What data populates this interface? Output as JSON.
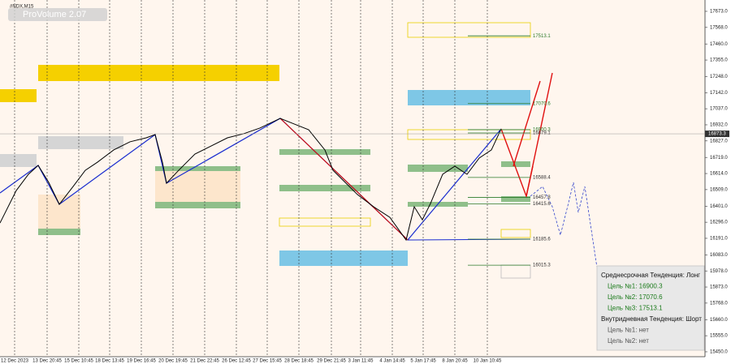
{
  "chart_data": {
    "type": "line",
    "symbol": "#NDX,M15",
    "indicator": "ProVolume 2.07",
    "xlim": [
      0,
      868
    ],
    "ylim": [
      15418,
      17747
    ],
    "xticks": [
      {
        "value": 18,
        "label": "12 Dec 2023"
      },
      {
        "value": 58,
        "label": "13 Dec 20:45"
      },
      {
        "value": 97,
        "label": "15 Dec 10:45"
      },
      {
        "value": 135,
        "label": "18 Dec 13:45"
      },
      {
        "value": 174,
        "label": "19 Dec 16:45"
      },
      {
        "value": 213,
        "label": "20 Dec 19:45"
      },
      {
        "value": 252,
        "label": "21 Dec 22:45"
      },
      {
        "value": 291,
        "label": "26 Dec 12:45"
      },
      {
        "value": 329,
        "label": "27 Dec 15:45"
      },
      {
        "value": 368,
        "label": "28 Dec 18:45"
      },
      {
        "value": 408,
        "label": "29 Dec 21:45"
      },
      {
        "value": 444,
        "label": "3 Jan 11:45"
      },
      {
        "value": 483,
        "label": "4 Jan 14:45"
      },
      {
        "value": 521,
        "label": "5 Jan 17:45"
      },
      {
        "value": 560,
        "label": "8 Jan 20:45"
      },
      {
        "value": 600,
        "label": "10 Jan 10:45"
      }
    ],
    "yticks": [
      {
        "value": 17673,
        "label": "17673.0"
      },
      {
        "value": 17568,
        "label": "17568.0"
      },
      {
        "value": 17460,
        "label": "17460.0"
      },
      {
        "value": 17355,
        "label": "17355.0"
      },
      {
        "value": 17248,
        "label": "17248.0"
      },
      {
        "value": 17142,
        "label": "17142.0"
      },
      {
        "value": 17037,
        "label": "17037.0"
      },
      {
        "value": 16932,
        "label": "16932.0"
      },
      {
        "value": 16827,
        "label": "16827.0"
      },
      {
        "value": 16719,
        "label": "16719.0"
      },
      {
        "value": 16614,
        "label": "16614.0"
      },
      {
        "value": 16509,
        "label": "16509.0"
      },
      {
        "value": 16401,
        "label": "16401.0"
      },
      {
        "value": 16296,
        "label": "16296.0"
      },
      {
        "value": 16191,
        "label": "16191.0"
      },
      {
        "value": 16083,
        "label": "16083.0"
      },
      {
        "value": 15978,
        "label": "15978.0"
      },
      {
        "value": 15873,
        "label": "15873.0"
      },
      {
        "value": 15768,
        "label": "15768.0"
      },
      {
        "value": 15660,
        "label": "15660.0"
      },
      {
        "value": 15555,
        "label": "15555.0"
      },
      {
        "value": 15450,
        "label": "15450.0"
      }
    ],
    "current_price": 16873.3,
    "series": [
      {
        "color": "#000000",
        "x": [
          0,
          10,
          20,
          35,
          47,
          60,
          73,
          90,
          105,
          120,
          140,
          160,
          180,
          191,
          200,
          205,
          220,
          240,
          260,
          280,
          300,
          320,
          345,
          360,
          380,
          400,
          410,
          425,
          440,
          460,
          480,
          500,
          510,
          520,
          530,
          545,
          560,
          575,
          590,
          605,
          617
        ],
        "values": [
          16291,
          16397,
          16503,
          16609,
          16667,
          16556,
          16413,
          16529,
          16635,
          16688,
          16768,
          16821,
          16847,
          16868,
          16688,
          16551,
          16635,
          16741,
          16794,
          16847,
          16874,
          16911,
          16974,
          16942,
          16900,
          16768,
          16635,
          16556,
          16477,
          16397,
          16328,
          16180,
          16397,
          16312,
          16418,
          16609,
          16662,
          16609,
          16715,
          16768,
          16905
        ]
      }
    ],
    "levels": [
      17513.1,
      17070.6,
      16900.3,
      16879.1,
      16588.4,
      16457.8,
      16415.6,
      16185.6,
      16015.3
    ],
    "info": [
      "Среднесрочная Тенденция: Лонг",
      "Цель №1: 16900.3",
      "Цель №2: 17070.6",
      "Цель №3: 17513.1",
      "Внутридневная Тенденция: Шорт",
      "Цель №1: нет",
      "Цель №2: нет"
    ]
  }
}
